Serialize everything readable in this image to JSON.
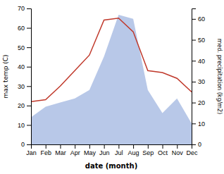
{
  "chart_data": {
    "type": "line",
    "xlabel": "date (month)",
    "ylabel": "max temp (C)",
    "y2label": "med. precipitation (kg/m2)",
    "categories": [
      "Jan",
      "Feb",
      "Mar",
      "Apr",
      "May",
      "Jun",
      "Jul",
      "Aug",
      "Sep",
      "Oct",
      "Nov",
      "Dec"
    ],
    "series": [
      {
        "type": "area",
        "axis": "y2",
        "color": "#b8c8e8",
        "values": [
          13,
          18,
          20,
          22,
          26,
          42,
          62,
          60,
          26,
          15,
          22,
          10
        ]
      },
      {
        "type": "line",
        "color": "#c0392b",
        "values": [
          22,
          23,
          30,
          38,
          46,
          64,
          65,
          58,
          38,
          37,
          34,
          27
        ]
      }
    ],
    "ylim": [
      0,
      70
    ],
    "yticks": [
      0,
      10,
      20,
      30,
      40,
      50,
      60,
      70
    ],
    "y2lim": [
      0,
      65
    ],
    "y2ticks": [
      0,
      10,
      20,
      30,
      40,
      50,
      60
    ],
    "grid": false
  }
}
